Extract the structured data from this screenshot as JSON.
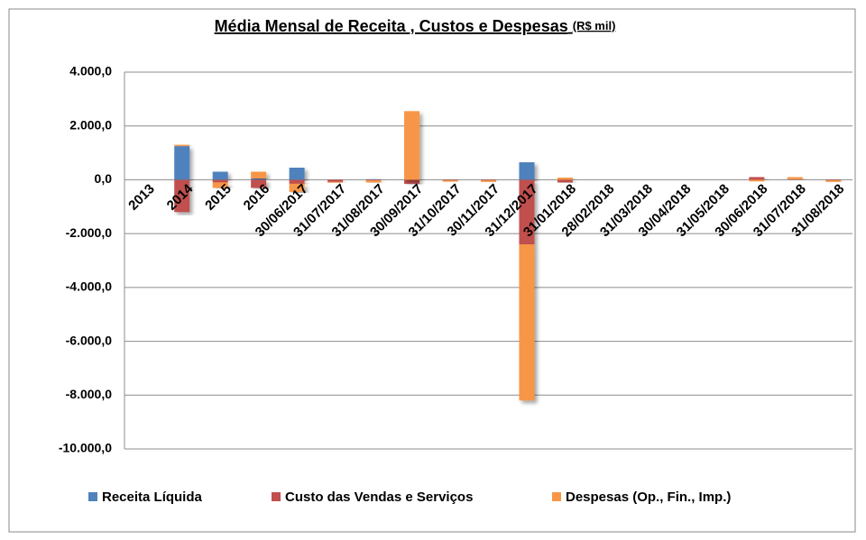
{
  "chart_data": {
    "type": "stacked_bar",
    "title": "Média Mensal de Receita , Custos e Despesas",
    "title_unit": "(R$ mil)",
    "categories": [
      "2013",
      "2014",
      "2015",
      "2016",
      "30/06/2017",
      "31/07/2017",
      "31/08/2017",
      "30/09/2017",
      "31/10/2017",
      "30/11/2017",
      "31/12/2017",
      "31/01/2018",
      "28/02/2018",
      "31/03/2018",
      "30/04/2018",
      "31/05/2018",
      "30/06/2018",
      "31/07/2018",
      "31/08/2018"
    ],
    "series": [
      {
        "name": "Receita Líquida",
        "color": "#4f81bd",
        "values": [
          0,
          1250,
          300,
          50,
          450,
          0,
          20,
          0,
          0,
          0,
          650,
          0,
          0,
          0,
          0,
          0,
          0,
          0,
          0
        ]
      },
      {
        "name": "Custo das Vendas e Serviços",
        "color": "#c0504d",
        "values": [
          0,
          -1200,
          -100,
          -300,
          -150,
          -80,
          -20,
          -150,
          -20,
          -20,
          -2400,
          -100,
          0,
          0,
          0,
          0,
          100,
          20,
          -20
        ]
      },
      {
        "name": "Despesas (Op., Fin., Imp.)",
        "color": "#f79646",
        "values": [
          0,
          50,
          -200,
          250,
          -300,
          -30,
          -80,
          2550,
          -50,
          -60,
          -5800,
          80,
          0,
          0,
          0,
          0,
          -60,
          80,
          -60
        ]
      }
    ],
    "ylim": [
      -10000,
      4000
    ],
    "yticks": [
      {
        "value": -10000,
        "label": "-10.000,0"
      },
      {
        "value": -8000,
        "label": "-8.000,0"
      },
      {
        "value": -6000,
        "label": "-6.000,0"
      },
      {
        "value": -4000,
        "label": "-4.000,0"
      },
      {
        "value": -2000,
        "label": "-2.000,0"
      },
      {
        "value": 0,
        "label": "0,0"
      },
      {
        "value": 2000,
        "label": "2.000,0"
      },
      {
        "value": 4000,
        "label": "4.000,0"
      }
    ],
    "grid": true,
    "legend": "bottom"
  }
}
